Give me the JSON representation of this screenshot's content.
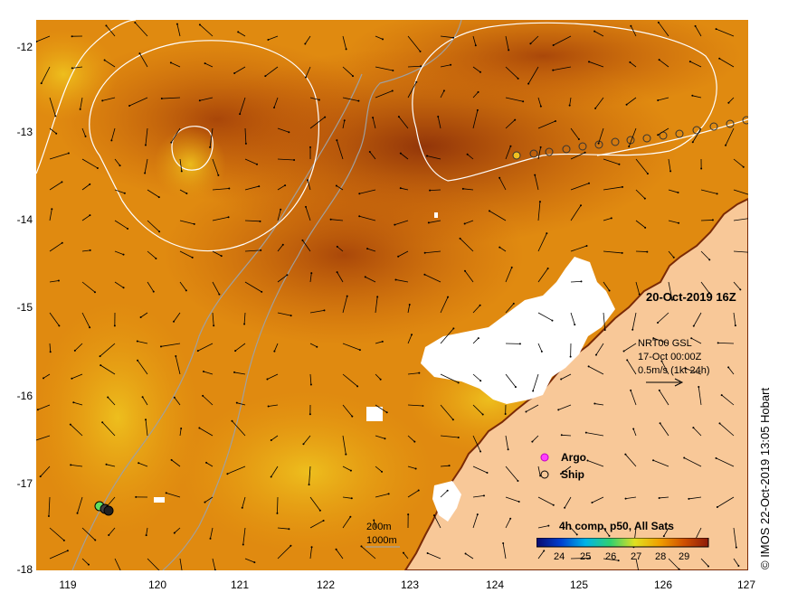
{
  "map": {
    "date_label": "20-Oct-2019 16Z",
    "product": {
      "line1": "NRT00 GSL",
      "line2": "17-Oct 00:00Z",
      "line3": "0.5m/s (1kt 24h)"
    },
    "depth_contours": {
      "c200": "200m",
      "c1000": "1000m"
    },
    "legend": {
      "argo": "Argo",
      "ship": "Ship"
    },
    "colorbar": {
      "title": "4h comp, p50, All Sats",
      "ticks": [
        "24",
        "25",
        "26",
        "27",
        "28",
        "29"
      ],
      "colors": [
        "#0a0a6e",
        "#0040d0",
        "#00b4e6",
        "#30d070",
        "#e0e020",
        "#f0a000",
        "#d05000",
        "#8c1a0a"
      ]
    },
    "credit": "© IMOS 22-Oct-2019 13:05 Hobart",
    "y_axis": [
      "-12",
      "-13",
      "-14",
      "-15",
      "-16",
      "-17",
      "-18"
    ],
    "x_axis": [
      "119",
      "120",
      "121",
      "122",
      "123",
      "124",
      "125",
      "126",
      "127"
    ],
    "colors": {
      "sea_warm": "#e08a10",
      "sea_hot": "#b84808",
      "sea_hottest": "#8a2c08",
      "land": "#f8c898",
      "cloud": "#ffffff",
      "contour": "#ffffff",
      "bathymetry": "#a0a0a0"
    }
  }
}
